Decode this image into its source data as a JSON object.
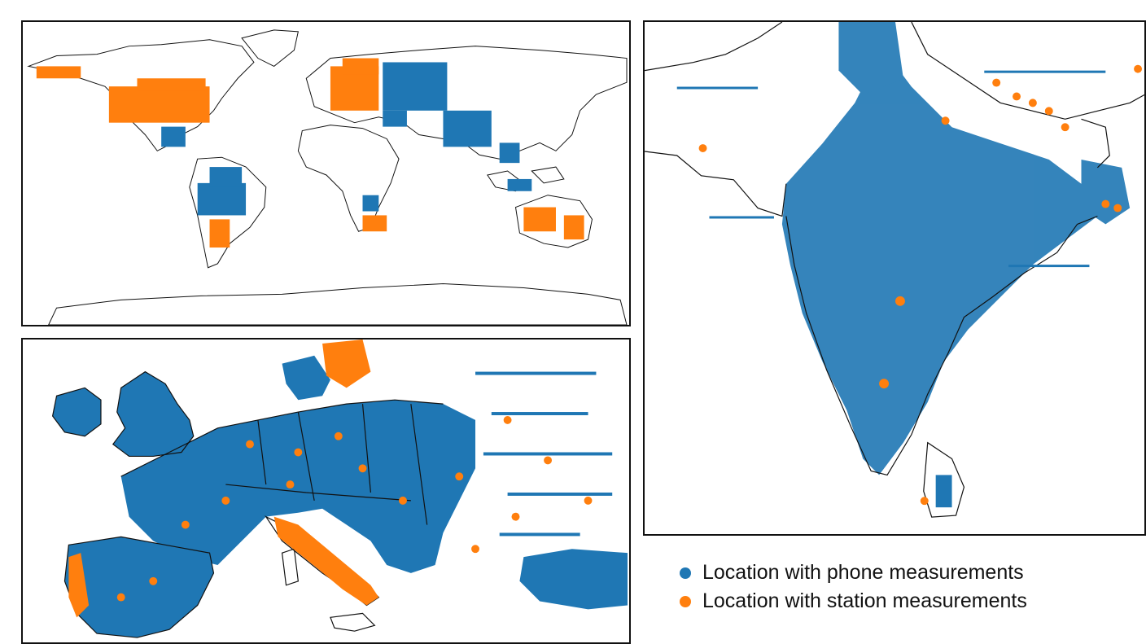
{
  "colors": {
    "phone": "#1f77b4",
    "station": "#ff7f0e",
    "outline": "#111111"
  },
  "legend": {
    "phone_label": "Location with phone measurements",
    "station_label": "Location with station measurements"
  },
  "maps": [
    {
      "region": "world"
    },
    {
      "region": "europe"
    },
    {
      "region": "south-asia"
    }
  ]
}
